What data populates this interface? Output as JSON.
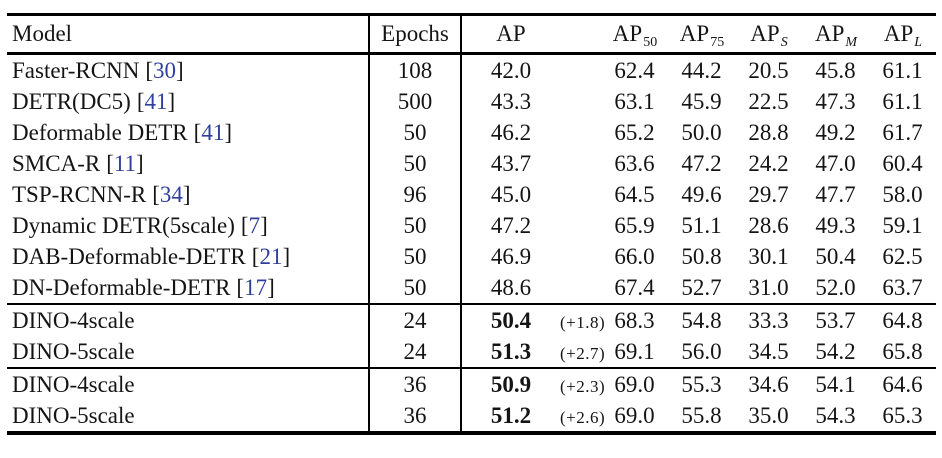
{
  "colors": {
    "citation_link": "#2e3f9e",
    "text": "#141414",
    "rule": "#000000",
    "background": "#ffffff"
  },
  "punct": {
    "open_bracket": "[",
    "close_bracket": "]"
  },
  "table": {
    "headers": [
      {
        "base": "Model",
        "sub": ""
      },
      {
        "base": "Epochs",
        "sub": ""
      },
      {
        "base": "AP",
        "sub": ""
      },
      {
        "base": "AP",
        "sub": "50"
      },
      {
        "base": "AP",
        "sub": "75"
      },
      {
        "base": "AP",
        "sub": "S"
      },
      {
        "base": "AP",
        "sub": "M"
      },
      {
        "base": "AP",
        "sub": "L"
      }
    ],
    "rows": [
      {
        "model": "Faster-RCNN",
        "citation": "30",
        "epochs": "108",
        "ap": "42.0",
        "ap_note": "",
        "ap_bold": false,
        "group_start": false,
        "ap50": "62.4",
        "ap75": "44.2",
        "ap_s": "20.5",
        "ap_m": "45.8",
        "ap_l": "61.1"
      },
      {
        "model": "DETR(DC5)",
        "citation": "41",
        "epochs": "500",
        "ap": "43.3",
        "ap_note": "",
        "ap_bold": false,
        "group_start": false,
        "ap50": "63.1",
        "ap75": "45.9",
        "ap_s": "22.5",
        "ap_m": "47.3",
        "ap_l": "61.1"
      },
      {
        "model": "Deformable DETR",
        "citation": "41",
        "epochs": "50",
        "ap": "46.2",
        "ap_note": "",
        "ap_bold": false,
        "group_start": false,
        "ap50": "65.2",
        "ap75": "50.0",
        "ap_s": "28.8",
        "ap_m": "49.2",
        "ap_l": "61.7"
      },
      {
        "model": "SMCA-R",
        "citation": "11",
        "epochs": "50",
        "ap": "43.7",
        "ap_note": "",
        "ap_bold": false,
        "group_start": false,
        "ap50": "63.6",
        "ap75": "47.2",
        "ap_s": "24.2",
        "ap_m": "47.0",
        "ap_l": "60.4"
      },
      {
        "model": "TSP-RCNN-R",
        "citation": "34",
        "epochs": "96",
        "ap": "45.0",
        "ap_note": "",
        "ap_bold": false,
        "group_start": false,
        "ap50": "64.5",
        "ap75": "49.6",
        "ap_s": "29.7",
        "ap_m": "47.7",
        "ap_l": "58.0"
      },
      {
        "model": "Dynamic DETR(5scale)",
        "citation": "7",
        "epochs": "50",
        "ap": "47.2",
        "ap_note": "",
        "ap_bold": false,
        "group_start": false,
        "ap50": "65.9",
        "ap75": "51.1",
        "ap_s": "28.6",
        "ap_m": "49.3",
        "ap_l": "59.1"
      },
      {
        "model": "DAB-Deformable-DETR",
        "citation": "21",
        "epochs": "50",
        "ap": "46.9",
        "ap_note": "",
        "ap_bold": false,
        "group_start": false,
        "ap50": "66.0",
        "ap75": "50.8",
        "ap_s": "30.1",
        "ap_m": "50.4",
        "ap_l": "62.5"
      },
      {
        "model": "DN-Deformable-DETR",
        "citation": "17",
        "epochs": "50",
        "ap": "48.6",
        "ap_note": "",
        "ap_bold": false,
        "group_start": false,
        "ap50": "67.4",
        "ap75": "52.7",
        "ap_s": "31.0",
        "ap_m": "52.0",
        "ap_l": "63.7"
      },
      {
        "model": "DINO-4scale",
        "citation": "",
        "epochs": "24",
        "ap": "50.4",
        "ap_note": "(+1.8)",
        "ap_bold": true,
        "group_start": true,
        "ap50": "68.3",
        "ap75": "54.8",
        "ap_s": "33.3",
        "ap_m": "53.7",
        "ap_l": "64.8"
      },
      {
        "model": "DINO-5scale",
        "citation": "",
        "epochs": "24",
        "ap": "51.3",
        "ap_note": "(+2.7)",
        "ap_bold": true,
        "group_start": false,
        "ap50": "69.1",
        "ap75": "56.0",
        "ap_s": "34.5",
        "ap_m": "54.2",
        "ap_l": "65.8"
      },
      {
        "model": "DINO-4scale",
        "citation": "",
        "epochs": "36",
        "ap": "50.9",
        "ap_note": "(+2.3)",
        "ap_bold": true,
        "group_start": true,
        "ap50": "69.0",
        "ap75": "55.3",
        "ap_s": "34.6",
        "ap_m": "54.1",
        "ap_l": "64.6"
      },
      {
        "model": "DINO-5scale",
        "citation": "",
        "epochs": "36",
        "ap": "51.2",
        "ap_note": "(+2.6)",
        "ap_bold": true,
        "group_start": false,
        "ap50": "69.0",
        "ap75": "55.8",
        "ap_s": "35.0",
        "ap_m": "54.3",
        "ap_l": "65.3"
      }
    ]
  }
}
